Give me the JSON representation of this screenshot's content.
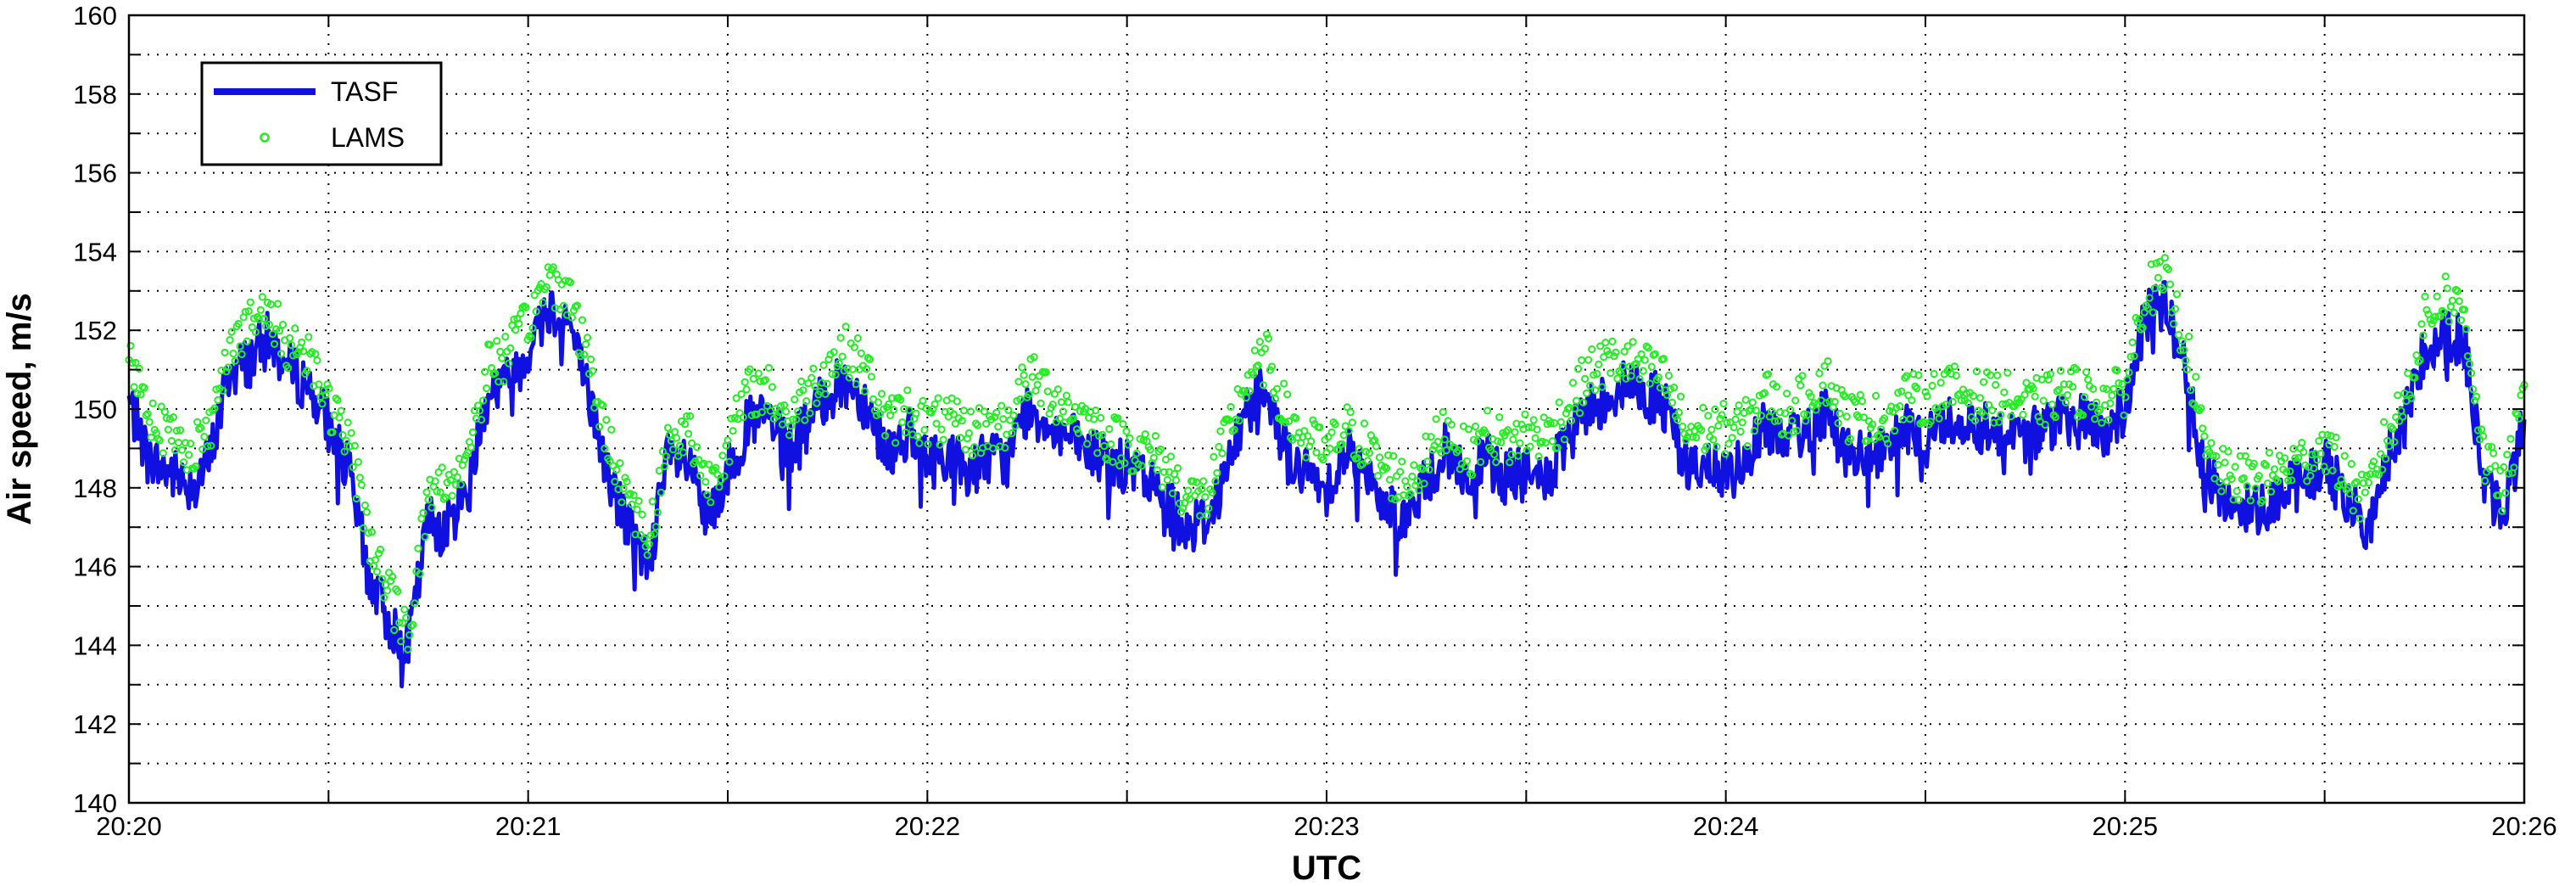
{
  "chart_data": {
    "type": "line",
    "xlabel": "UTC",
    "ylabel": "Air speed, m/s",
    "x_tick_labels": [
      "20:20",
      "20:21",
      "20:22",
      "20:23",
      "20:24",
      "20:25",
      "20:26"
    ],
    "y_tick_labels": [
      "140",
      "142",
      "144",
      "146",
      "148",
      "150",
      "152",
      "154",
      "156",
      "158",
      "160"
    ],
    "xlim_minutes_after_20_20": [
      0,
      6
    ],
    "ylim": [
      140,
      160
    ],
    "grid": true,
    "legend_position": "top-left",
    "series": [
      {
        "name": "TASF",
        "style": "line",
        "color": "#1010e0",
        "x": [
          0,
          0.05,
          0.1,
          0.15,
          0.2,
          0.25,
          0.3,
          0.35,
          0.4,
          0.45,
          0.5,
          0.55,
          0.6,
          0.65,
          0.7,
          0.75,
          0.8,
          0.85,
          0.9,
          0.95,
          1.0,
          1.05,
          1.1,
          1.15,
          1.2,
          1.25,
          1.3,
          1.35,
          1.4,
          1.45,
          1.5,
          1.55,
          1.6,
          1.65,
          1.7,
          1.75,
          1.8,
          1.85,
          1.9,
          1.95,
          2.0,
          2.05,
          2.1,
          2.15,
          2.2,
          2.25,
          2.3,
          2.35,
          2.4,
          2.45,
          2.5,
          2.55,
          2.6,
          2.65,
          2.7,
          2.75,
          2.8,
          2.85,
          2.9,
          2.95,
          3.0,
          3.05,
          3.1,
          3.15,
          3.2,
          3.25,
          3.3,
          3.35,
          3.4,
          3.45,
          3.5,
          3.55,
          3.6,
          3.65,
          3.7,
          3.75,
          3.8,
          3.85,
          3.9,
          3.95,
          4.0,
          4.05,
          4.1,
          4.15,
          4.2,
          4.25,
          4.3,
          4.35,
          4.4,
          4.45,
          4.5,
          4.55,
          4.6,
          4.65,
          4.7,
          4.75,
          4.8,
          4.85,
          4.9,
          4.95,
          5.0,
          5.05,
          5.1,
          5.15,
          5.2,
          5.25,
          5.3,
          5.35,
          5.4,
          5.45,
          5.5,
          5.55,
          5.6,
          5.65,
          5.7,
          5.75,
          5.8,
          5.85,
          5.9,
          5.95,
          6.0
        ],
        "values": [
          150.2,
          148.7,
          148.4,
          148.1,
          148.6,
          150.9,
          151.2,
          151.8,
          151.0,
          150.6,
          149.6,
          148.4,
          145.8,
          144.6,
          144.0,
          147.2,
          147.0,
          148.1,
          150.5,
          150.7,
          151.5,
          152.6,
          152.3,
          150.4,
          148.3,
          147.0,
          146.1,
          148.7,
          148.6,
          147.1,
          148.4,
          149.6,
          149.8,
          148.9,
          149.6,
          150.4,
          150.7,
          150.1,
          148.9,
          149.4,
          148.6,
          148.9,
          148.4,
          148.8,
          148.7,
          150.0,
          149.7,
          149.3,
          148.9,
          148.7,
          148.5,
          148.2,
          147.6,
          147.0,
          147.2,
          148.4,
          150.0,
          150.7,
          148.8,
          148.3,
          148.0,
          149.0,
          148.2,
          147.6,
          147.2,
          148.1,
          149.0,
          148.2,
          148.7,
          148.3,
          148.3,
          148.2,
          149.0,
          149.9,
          150.3,
          150.6,
          150.4,
          150.1,
          148.6,
          148.4,
          148.4,
          148.7,
          149.7,
          149.0,
          149.5,
          150.0,
          148.9,
          148.7,
          148.8,
          149.4,
          149.3,
          149.7,
          149.7,
          149.5,
          149.5,
          149.3,
          149.5,
          149.7,
          149.7,
          149.4,
          150.0,
          152.3,
          152.6,
          151.3,
          148.2,
          147.8,
          147.4,
          147.6,
          147.9,
          148.2,
          148.6,
          147.8,
          147.0,
          148.5,
          149.6,
          151.6,
          151.9,
          151.7,
          148.0,
          147.3,
          149.8
        ]
      },
      {
        "name": "LAMS",
        "style": "markers",
        "color": "#22ee22",
        "x": [
          0,
          0.05,
          0.1,
          0.15,
          0.2,
          0.25,
          0.3,
          0.35,
          0.4,
          0.45,
          0.5,
          0.55,
          0.6,
          0.65,
          0.7,
          0.75,
          0.8,
          0.85,
          0.9,
          0.95,
          1.0,
          1.05,
          1.1,
          1.15,
          1.2,
          1.25,
          1.3,
          1.35,
          1.4,
          1.45,
          1.5,
          1.55,
          1.6,
          1.65,
          1.7,
          1.75,
          1.8,
          1.85,
          1.9,
          1.95,
          2.0,
          2.05,
          2.1,
          2.15,
          2.2,
          2.25,
          2.3,
          2.35,
          2.4,
          2.45,
          2.5,
          2.55,
          2.6,
          2.65,
          2.7,
          2.75,
          2.8,
          2.85,
          2.9,
          2.95,
          3.0,
          3.05,
          3.1,
          3.15,
          3.2,
          3.25,
          3.3,
          3.35,
          3.4,
          3.45,
          3.5,
          3.55,
          3.6,
          3.65,
          3.7,
          3.75,
          3.8,
          3.85,
          3.9,
          3.95,
          4.0,
          4.05,
          4.1,
          4.15,
          4.2,
          4.25,
          4.3,
          4.35,
          4.4,
          4.45,
          4.5,
          4.55,
          4.6,
          4.65,
          4.7,
          4.75,
          4.8,
          4.85,
          4.9,
          4.95,
          5.0,
          5.05,
          5.1,
          5.15,
          5.2,
          5.25,
          5.3,
          5.35,
          5.4,
          5.45,
          5.5,
          5.55,
          5.6,
          5.65,
          5.7,
          5.75,
          5.8,
          5.85,
          5.9,
          5.95,
          6.0
        ],
        "values": [
          151.4,
          150.0,
          149.3,
          149.0,
          149.3,
          151.7,
          152.1,
          152.4,
          151.6,
          151.5,
          150.1,
          149.2,
          146.9,
          145.3,
          144.3,
          147.9,
          148.1,
          148.9,
          151.1,
          151.4,
          152.2,
          153.3,
          153.0,
          151.2,
          149.1,
          147.9,
          146.6,
          149.1,
          149.5,
          148.1,
          149.1,
          150.4,
          150.5,
          149.7,
          150.4,
          151.1,
          151.5,
          150.9,
          149.6,
          150.0,
          149.6,
          149.7,
          149.4,
          149.5,
          149.6,
          150.8,
          150.5,
          150.0,
          149.7,
          149.3,
          149.1,
          148.9,
          148.5,
          147.8,
          147.7,
          149.3,
          150.7,
          151.3,
          149.8,
          149.2,
          148.9,
          149.5,
          149.0,
          148.4,
          148.1,
          148.7,
          149.6,
          148.8,
          149.4,
          149.1,
          149.4,
          149.3,
          149.9,
          150.8,
          151.2,
          151.2,
          151.0,
          150.7,
          149.4,
          149.5,
          149.5,
          149.6,
          150.4,
          149.8,
          150.3,
          150.8,
          149.8,
          149.8,
          149.7,
          150.3,
          150.2,
          150.5,
          150.4,
          150.3,
          150.3,
          150.1,
          150.2,
          150.5,
          150.4,
          150.2,
          150.5,
          153.0,
          153.2,
          151.8,
          148.9,
          148.3,
          148.2,
          148.2,
          148.5,
          148.7,
          149.1,
          148.3,
          147.6,
          149.1,
          150.2,
          152.2,
          152.9,
          152.4,
          148.7,
          147.9,
          150.3
        ]
      }
    ]
  }
}
